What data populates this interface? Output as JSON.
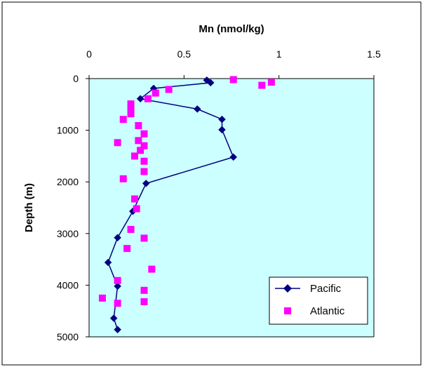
{
  "chart_data": {
    "type": "scatter",
    "title": "",
    "xlabel": "Mn (nmol/kg)",
    "ylabel": "Depth (m)",
    "xlim": [
      0,
      1.5
    ],
    "ylim": [
      5000,
      0
    ],
    "x_axis_position": "top",
    "y_axis_inverted": true,
    "xticks": [
      "0",
      "0.5",
      "1",
      "1.5"
    ],
    "yticks": [
      "0",
      "1000",
      "2000",
      "3000",
      "4000",
      "5000"
    ],
    "xtick_values": [
      0,
      0.5,
      1,
      1.5
    ],
    "ytick_values": [
      0,
      1000,
      2000,
      3000,
      4000,
      5000
    ],
    "grid": false,
    "legend_position": "bottom-right",
    "plot_background": "#ccffff",
    "series": [
      {
        "name": "Pacific",
        "style": "line-with-diamond-markers",
        "color": "#000080",
        "points": [
          {
            "x": 0.62,
            "y": 30
          },
          {
            "x": 0.64,
            "y": 80
          },
          {
            "x": 0.34,
            "y": 190
          },
          {
            "x": 0.27,
            "y": 390
          },
          {
            "x": 0.57,
            "y": 590
          },
          {
            "x": 0.7,
            "y": 790
          },
          {
            "x": 0.7,
            "y": 990
          },
          {
            "x": 0.76,
            "y": 1520
          },
          {
            "x": 0.3,
            "y": 2030
          },
          {
            "x": 0.23,
            "y": 2570
          },
          {
            "x": 0.15,
            "y": 3080
          },
          {
            "x": 0.1,
            "y": 3560
          },
          {
            "x": 0.15,
            "y": 4020
          },
          {
            "x": 0.13,
            "y": 4640
          },
          {
            "x": 0.15,
            "y": 4860
          }
        ]
      },
      {
        "name": "Atlantic",
        "style": "square-markers",
        "color": "#ff00ff",
        "points": [
          {
            "x": 0.76,
            "y": 20
          },
          {
            "x": 0.96,
            "y": 70
          },
          {
            "x": 0.91,
            "y": 130
          },
          {
            "x": 0.42,
            "y": 210
          },
          {
            "x": 0.35,
            "y": 280
          },
          {
            "x": 0.31,
            "y": 390
          },
          {
            "x": 0.22,
            "y": 490
          },
          {
            "x": 0.22,
            "y": 590
          },
          {
            "x": 0.22,
            "y": 680
          },
          {
            "x": 0.18,
            "y": 790
          },
          {
            "x": 0.26,
            "y": 910
          },
          {
            "x": 0.29,
            "y": 1070
          },
          {
            "x": 0.26,
            "y": 1200
          },
          {
            "x": 0.15,
            "y": 1240
          },
          {
            "x": 0.29,
            "y": 1300
          },
          {
            "x": 0.27,
            "y": 1390
          },
          {
            "x": 0.24,
            "y": 1500
          },
          {
            "x": 0.29,
            "y": 1600
          },
          {
            "x": 0.29,
            "y": 1800
          },
          {
            "x": 0.18,
            "y": 1940
          },
          {
            "x": 0.24,
            "y": 2330
          },
          {
            "x": 0.25,
            "y": 2520
          },
          {
            "x": 0.22,
            "y": 2920
          },
          {
            "x": 0.29,
            "y": 3090
          },
          {
            "x": 0.2,
            "y": 3290
          },
          {
            "x": 0.33,
            "y": 3690
          },
          {
            "x": 0.15,
            "y": 3910
          },
          {
            "x": 0.29,
            "y": 4100
          },
          {
            "x": 0.07,
            "y": 4250
          },
          {
            "x": 0.29,
            "y": 4320
          },
          {
            "x": 0.15,
            "y": 4350
          }
        ]
      }
    ]
  }
}
